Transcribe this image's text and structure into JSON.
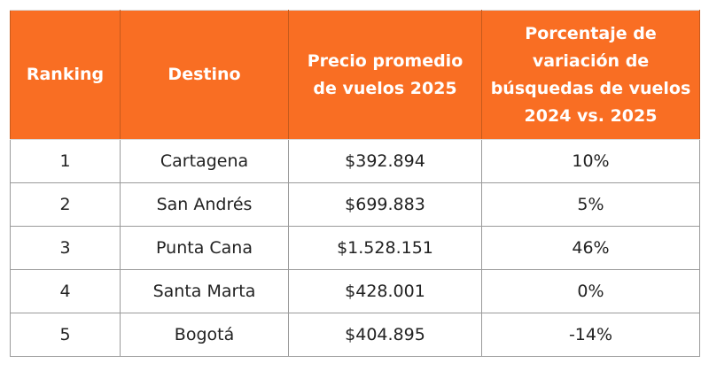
{
  "table": {
    "headers": [
      "Ranking",
      "Destino",
      "Precio promedio de vuelos 2025",
      "Porcentaje de variación de búsquedas de vuelos 2024 vs. 2025"
    ],
    "rows": [
      [
        "1",
        "Cartagena",
        "$392.894",
        "10%"
      ],
      [
        "2",
        "San Andrés",
        "$699.883",
        "5%"
      ],
      [
        "3",
        "Punta Cana",
        "$1.528.151",
        "46%"
      ],
      [
        "4",
        "Santa Marta",
        "$428.001",
        "0%"
      ],
      [
        "5",
        "Bogotá",
        "$404.895",
        "-14%"
      ]
    ]
  }
}
